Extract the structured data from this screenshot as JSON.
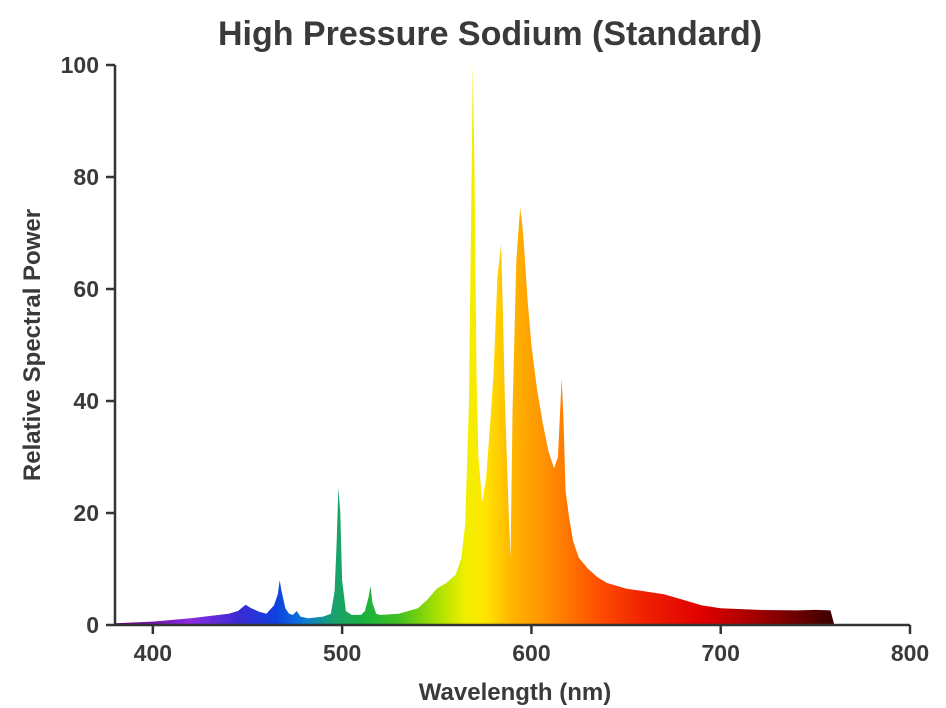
{
  "chart_data": {
    "type": "area",
    "title": "High Pressure Sodium (Standard)",
    "xlabel": "Wavelength (nm)",
    "ylabel": "Relative Spectral Power",
    "xlim": [
      380,
      800
    ],
    "ylim": [
      0,
      100
    ],
    "xticks": [
      400,
      500,
      600,
      700,
      800
    ],
    "yticks": [
      0,
      20,
      40,
      60,
      80,
      100
    ],
    "fill": "spectral color gradient (violet to dark red)",
    "grid": false,
    "legend": "none",
    "series": [
      {
        "x": [
          380,
          400,
          420,
          440,
          445,
          449,
          452,
          456,
          460,
          464,
          466,
          467,
          468,
          470,
          472,
          474,
          476,
          478,
          482,
          490,
          494,
          496,
          497,
          498,
          499,
          500,
          502,
          505,
          510,
          512,
          514,
          515,
          516,
          518,
          520,
          530,
          540,
          545,
          550,
          555,
          560,
          563,
          565,
          567,
          568,
          569,
          570,
          571,
          572,
          574,
          576,
          578,
          580,
          582,
          584,
          585,
          586,
          588,
          589,
          590,
          592,
          594,
          595,
          596,
          598,
          600,
          603,
          606,
          609,
          612,
          614,
          616,
          617,
          618,
          620,
          622,
          625,
          630,
          635,
          640,
          650,
          660,
          670,
          680,
          690,
          700,
          720,
          740,
          750,
          758,
          760
        ],
        "y": [
          0.3,
          0.6,
          1.2,
          2.0,
          2.5,
          3.6,
          3.0,
          2.4,
          2.0,
          3.5,
          5.5,
          8.0,
          6.0,
          3.0,
          2.0,
          1.8,
          2.5,
          1.5,
          1.2,
          1.5,
          2.0,
          6.0,
          14.0,
          24.5,
          20.0,
          8.0,
          2.5,
          1.8,
          1.8,
          2.5,
          5.0,
          7.0,
          4.0,
          2.0,
          1.8,
          2.0,
          3.0,
          4.5,
          6.5,
          7.5,
          9.0,
          12.0,
          18.0,
          40.0,
          70.0,
          100.0,
          80.0,
          45.0,
          30.0,
          22.0,
          26.0,
          35.0,
          45.0,
          62.0,
          68.0,
          55.0,
          40.0,
          20.0,
          12.0,
          38.0,
          65.0,
          74.5,
          72.0,
          68.0,
          58.0,
          50.0,
          42.0,
          36.0,
          31.0,
          28.0,
          30.0,
          44.0,
          36.0,
          24.0,
          19.0,
          15.0,
          12.0,
          10.0,
          8.5,
          7.5,
          6.5,
          6.0,
          5.5,
          4.5,
          3.5,
          3.0,
          2.7,
          2.6,
          2.7,
          2.6,
          0.0
        ]
      }
    ]
  }
}
